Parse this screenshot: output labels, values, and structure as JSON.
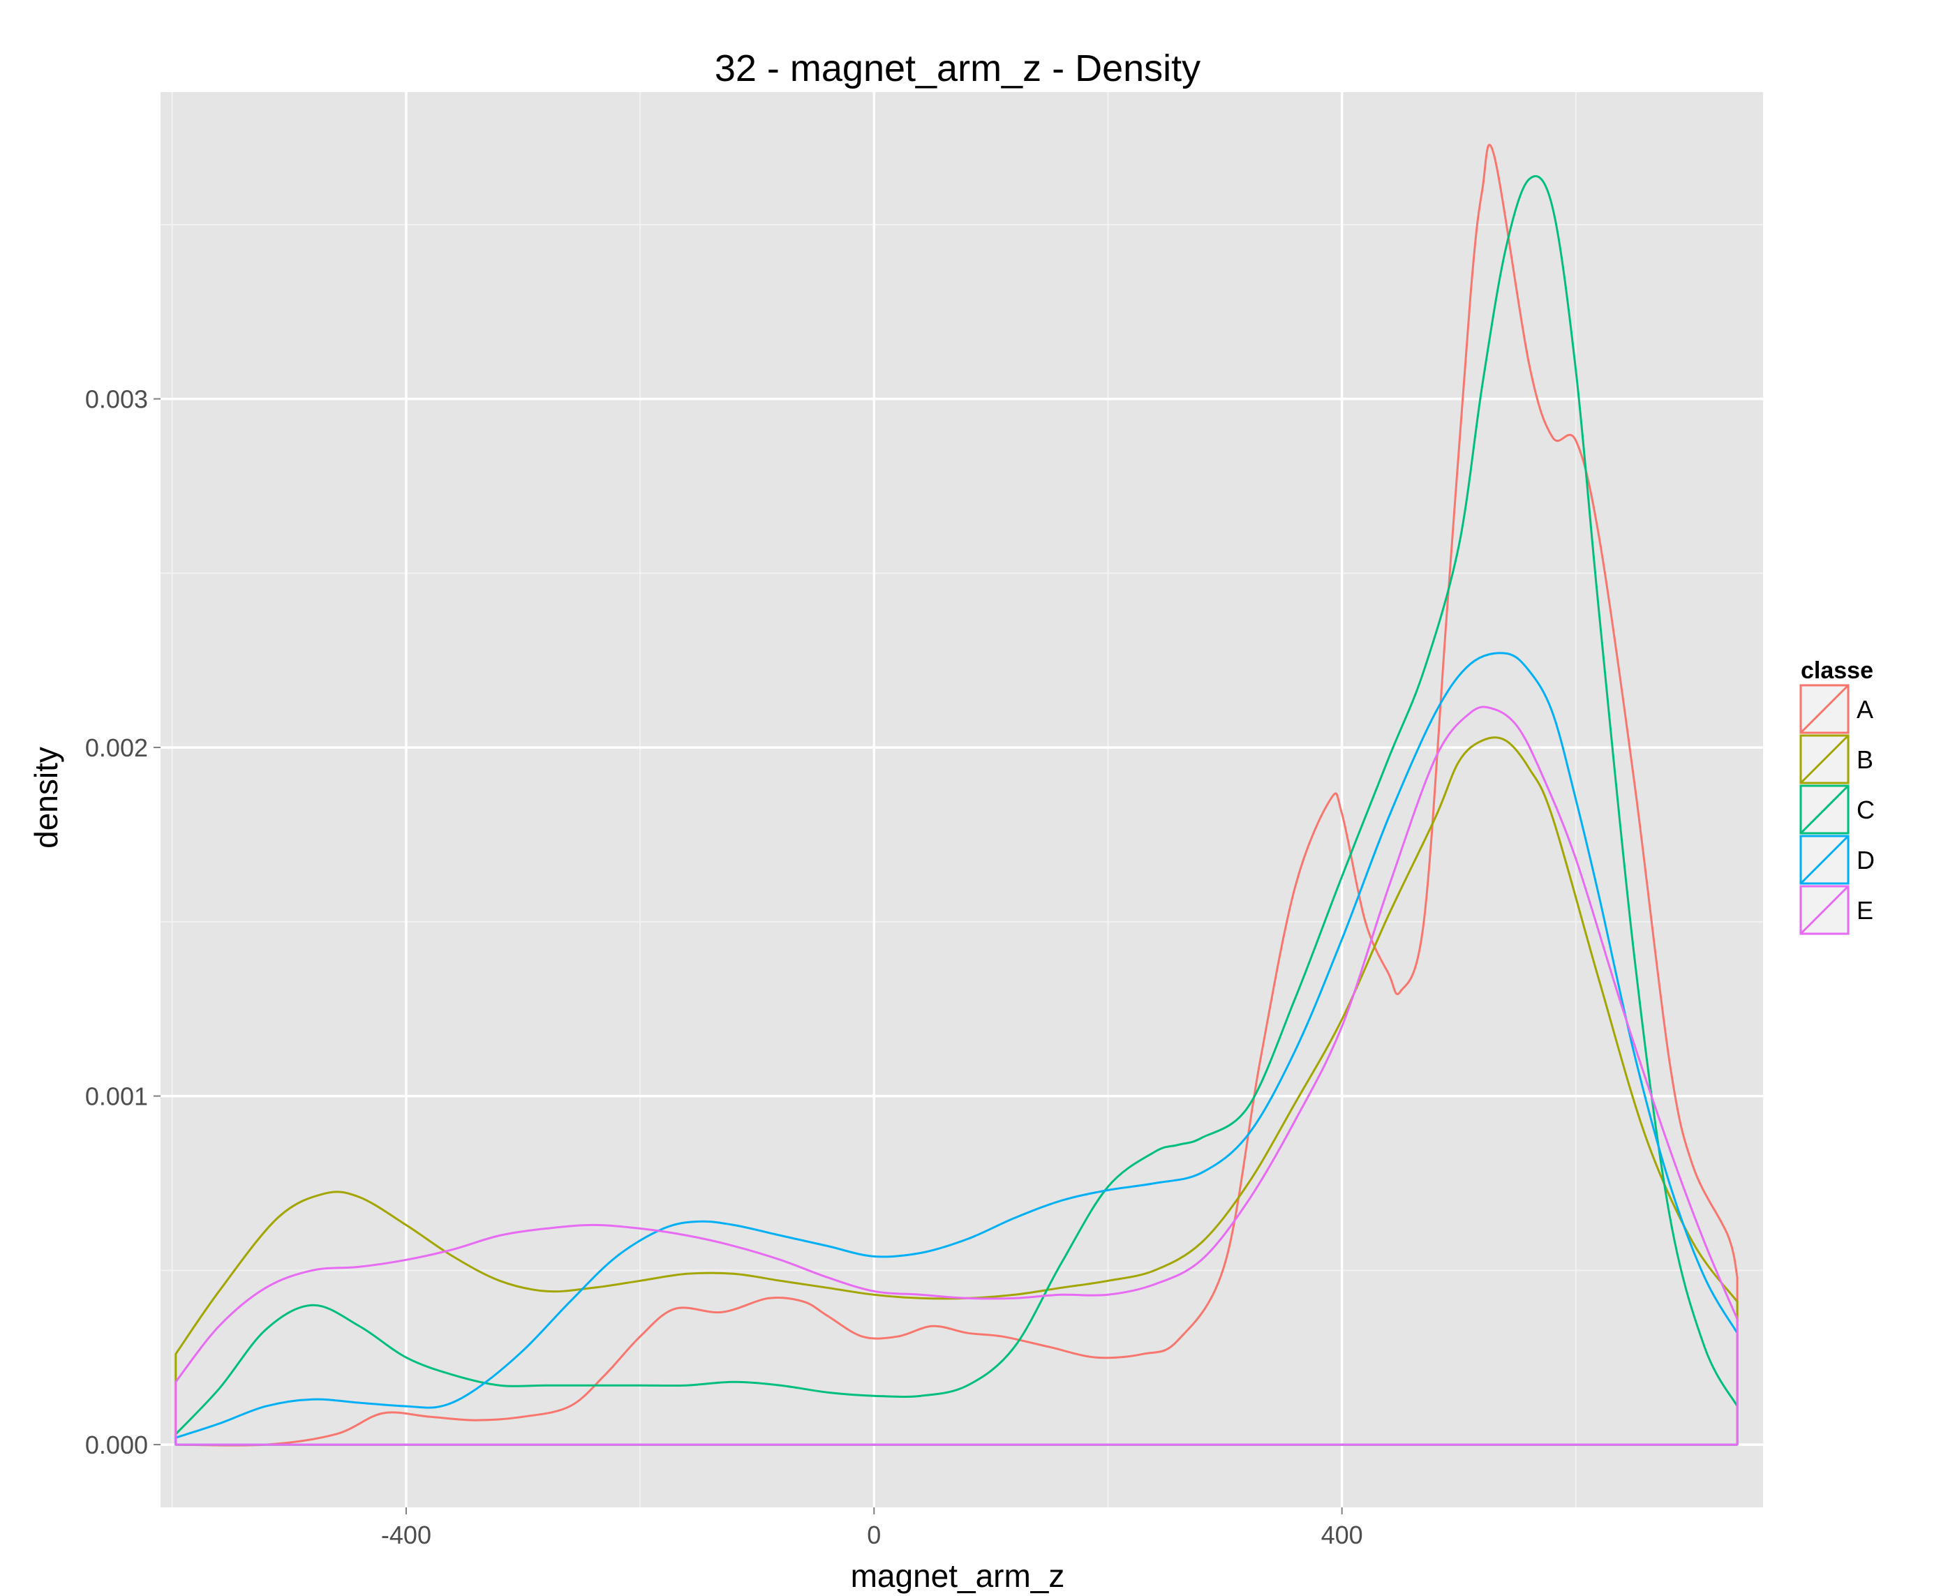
{
  "chart_data": {
    "type": "line",
    "title": "32 - magnet_arm_z - Density",
    "xlabel": "magnet_arm_z",
    "ylabel": "density",
    "xlim": [
      -610,
      760
    ],
    "ylim": [
      -0.00018,
      0.00388
    ],
    "x_ticks": [
      {
        "value": -400,
        "label": "-400"
      },
      {
        "value": 0,
        "label": "0"
      },
      {
        "value": 400,
        "label": "400"
      }
    ],
    "y_ticks": [
      {
        "value": 0.0,
        "label": "0.000"
      },
      {
        "value": 0.001,
        "label": "0.001"
      },
      {
        "value": 0.002,
        "label": "0.002"
      },
      {
        "value": 0.003,
        "label": "0.003"
      }
    ],
    "x_minor": [
      -600,
      -200,
      200,
      600
    ],
    "y_minor": [
      0.0005,
      0.0015,
      0.0025,
      0.0035
    ],
    "grid": true,
    "legend": {
      "title": "classe",
      "position": "right"
    },
    "series": [
      {
        "name": "A",
        "color": "#F8766D",
        "x": [
          -597,
          -520,
          -460,
          -420,
          -380,
          -340,
          -300,
          -260,
          -230,
          -200,
          -170,
          -130,
          -90,
          -60,
          -40,
          -10,
          20,
          50,
          80,
          110,
          150,
          190,
          230,
          260,
          300,
          330,
          360,
          390,
          400,
          420,
          440,
          450,
          470,
          490,
          510,
          520,
          530,
          560,
          580,
          600,
          620,
          650,
          680,
          700,
          730,
          738
        ],
        "y": [
          0,
          0,
          3e-05,
          9e-05,
          8e-05,
          7e-05,
          8e-05,
          0.00011,
          0.0002,
          0.00031,
          0.00039,
          0.00038,
          0.00042,
          0.00041,
          0.00037,
          0.00031,
          0.00031,
          0.00034,
          0.00032,
          0.00031,
          0.00028,
          0.00025,
          0.00026,
          0.0003,
          0.00052,
          0.0011,
          0.0016,
          0.00185,
          0.00181,
          0.0015,
          0.00135,
          0.0013,
          0.0015,
          0.0024,
          0.0033,
          0.0036,
          0.0037,
          0.0031,
          0.00289,
          0.00288,
          0.0026,
          0.0019,
          0.0011,
          0.0008,
          0.0006,
          0.00048
        ]
      },
      {
        "name": "B",
        "color": "#A3A500",
        "x": [
          -597,
          -560,
          -510,
          -470,
          -440,
          -400,
          -360,
          -320,
          -280,
          -240,
          -200,
          -160,
          -120,
          -80,
          -40,
          0,
          40,
          80,
          120,
          160,
          200,
          240,
          280,
          320,
          360,
          400,
          440,
          480,
          500,
          520,
          540,
          560,
          580,
          620,
          660,
          700,
          738
        ],
        "y": [
          0.00026,
          0.00044,
          0.00065,
          0.00072,
          0.00071,
          0.00063,
          0.00054,
          0.00047,
          0.00044,
          0.00045,
          0.00047,
          0.00049,
          0.00049,
          0.00047,
          0.00045,
          0.00043,
          0.00042,
          0.00042,
          0.00043,
          0.00045,
          0.00047,
          0.0005,
          0.00058,
          0.00075,
          0.00098,
          0.00122,
          0.00152,
          0.0018,
          0.00196,
          0.00202,
          0.00202,
          0.00194,
          0.0018,
          0.00133,
          0.00088,
          0.00058,
          0.00041
        ]
      },
      {
        "name": "C",
        "color": "#00BF7D",
        "x": [
          -597,
          -560,
          -520,
          -480,
          -440,
          -400,
          -360,
          -320,
          -280,
          -240,
          -200,
          -160,
          -120,
          -80,
          -40,
          0,
          40,
          80,
          120,
          160,
          200,
          240,
          260,
          280,
          320,
          360,
          400,
          440,
          470,
          500,
          520,
          540,
          560,
          580,
          600,
          620,
          650,
          680,
          710,
          738
        ],
        "y": [
          3e-05,
          0.00016,
          0.00033,
          0.0004,
          0.00034,
          0.00025,
          0.0002,
          0.00017,
          0.00017,
          0.00017,
          0.00017,
          0.00017,
          0.00018,
          0.00017,
          0.00015,
          0.00014,
          0.00014,
          0.00017,
          0.00028,
          0.00052,
          0.00074,
          0.00084,
          0.00086,
          0.00088,
          0.00097,
          0.00128,
          0.00163,
          0.00197,
          0.00222,
          0.00258,
          0.00304,
          0.00343,
          0.00363,
          0.00355,
          0.00308,
          0.00238,
          0.0014,
          0.00066,
          0.00028,
          0.00011
        ]
      },
      {
        "name": "D",
        "color": "#00B0F6",
        "x": [
          -597,
          -560,
          -520,
          -480,
          -440,
          -400,
          -370,
          -340,
          -300,
          -260,
          -220,
          -180,
          -150,
          -120,
          -80,
          -40,
          0,
          40,
          80,
          120,
          160,
          200,
          240,
          280,
          320,
          360,
          400,
          440,
          480,
          510,
          540,
          560,
          580,
          600,
          620,
          650,
          680,
          710,
          738
        ],
        "y": [
          2e-05,
          6e-05,
          0.00011,
          0.00013,
          0.00012,
          0.00011,
          0.00011,
          0.00016,
          0.00027,
          0.00041,
          0.00054,
          0.00062,
          0.00064,
          0.00063,
          0.0006,
          0.00057,
          0.00054,
          0.00055,
          0.00059,
          0.00065,
          0.0007,
          0.00073,
          0.00075,
          0.00078,
          0.00089,
          0.00113,
          0.00145,
          0.0018,
          0.0021,
          0.00224,
          0.00227,
          0.00222,
          0.0021,
          0.00185,
          0.00157,
          0.00112,
          0.00075,
          0.00048,
          0.00032
        ]
      },
      {
        "name": "E",
        "color": "#E76BF3",
        "x": [
          -597,
          -560,
          -520,
          -480,
          -440,
          -400,
          -360,
          -320,
          -280,
          -240,
          -200,
          -160,
          -120,
          -80,
          -40,
          0,
          40,
          80,
          120,
          160,
          200,
          240,
          280,
          320,
          360,
          400,
          440,
          480,
          510,
          530,
          550,
          570,
          600,
          640,
          680,
          710,
          738
        ],
        "y": [
          0.00018,
          0.00034,
          0.00045,
          0.0005,
          0.00051,
          0.00053,
          0.00056,
          0.0006,
          0.00062,
          0.00063,
          0.00062,
          0.0006,
          0.00057,
          0.00053,
          0.00048,
          0.00044,
          0.00043,
          0.00042,
          0.00042,
          0.00043,
          0.00043,
          0.00046,
          0.00053,
          0.0007,
          0.00093,
          0.0012,
          0.0016,
          0.00197,
          0.0021,
          0.00211,
          0.00206,
          0.00193,
          0.00168,
          0.00125,
          0.00085,
          0.00058,
          0.00036
        ]
      }
    ]
  }
}
